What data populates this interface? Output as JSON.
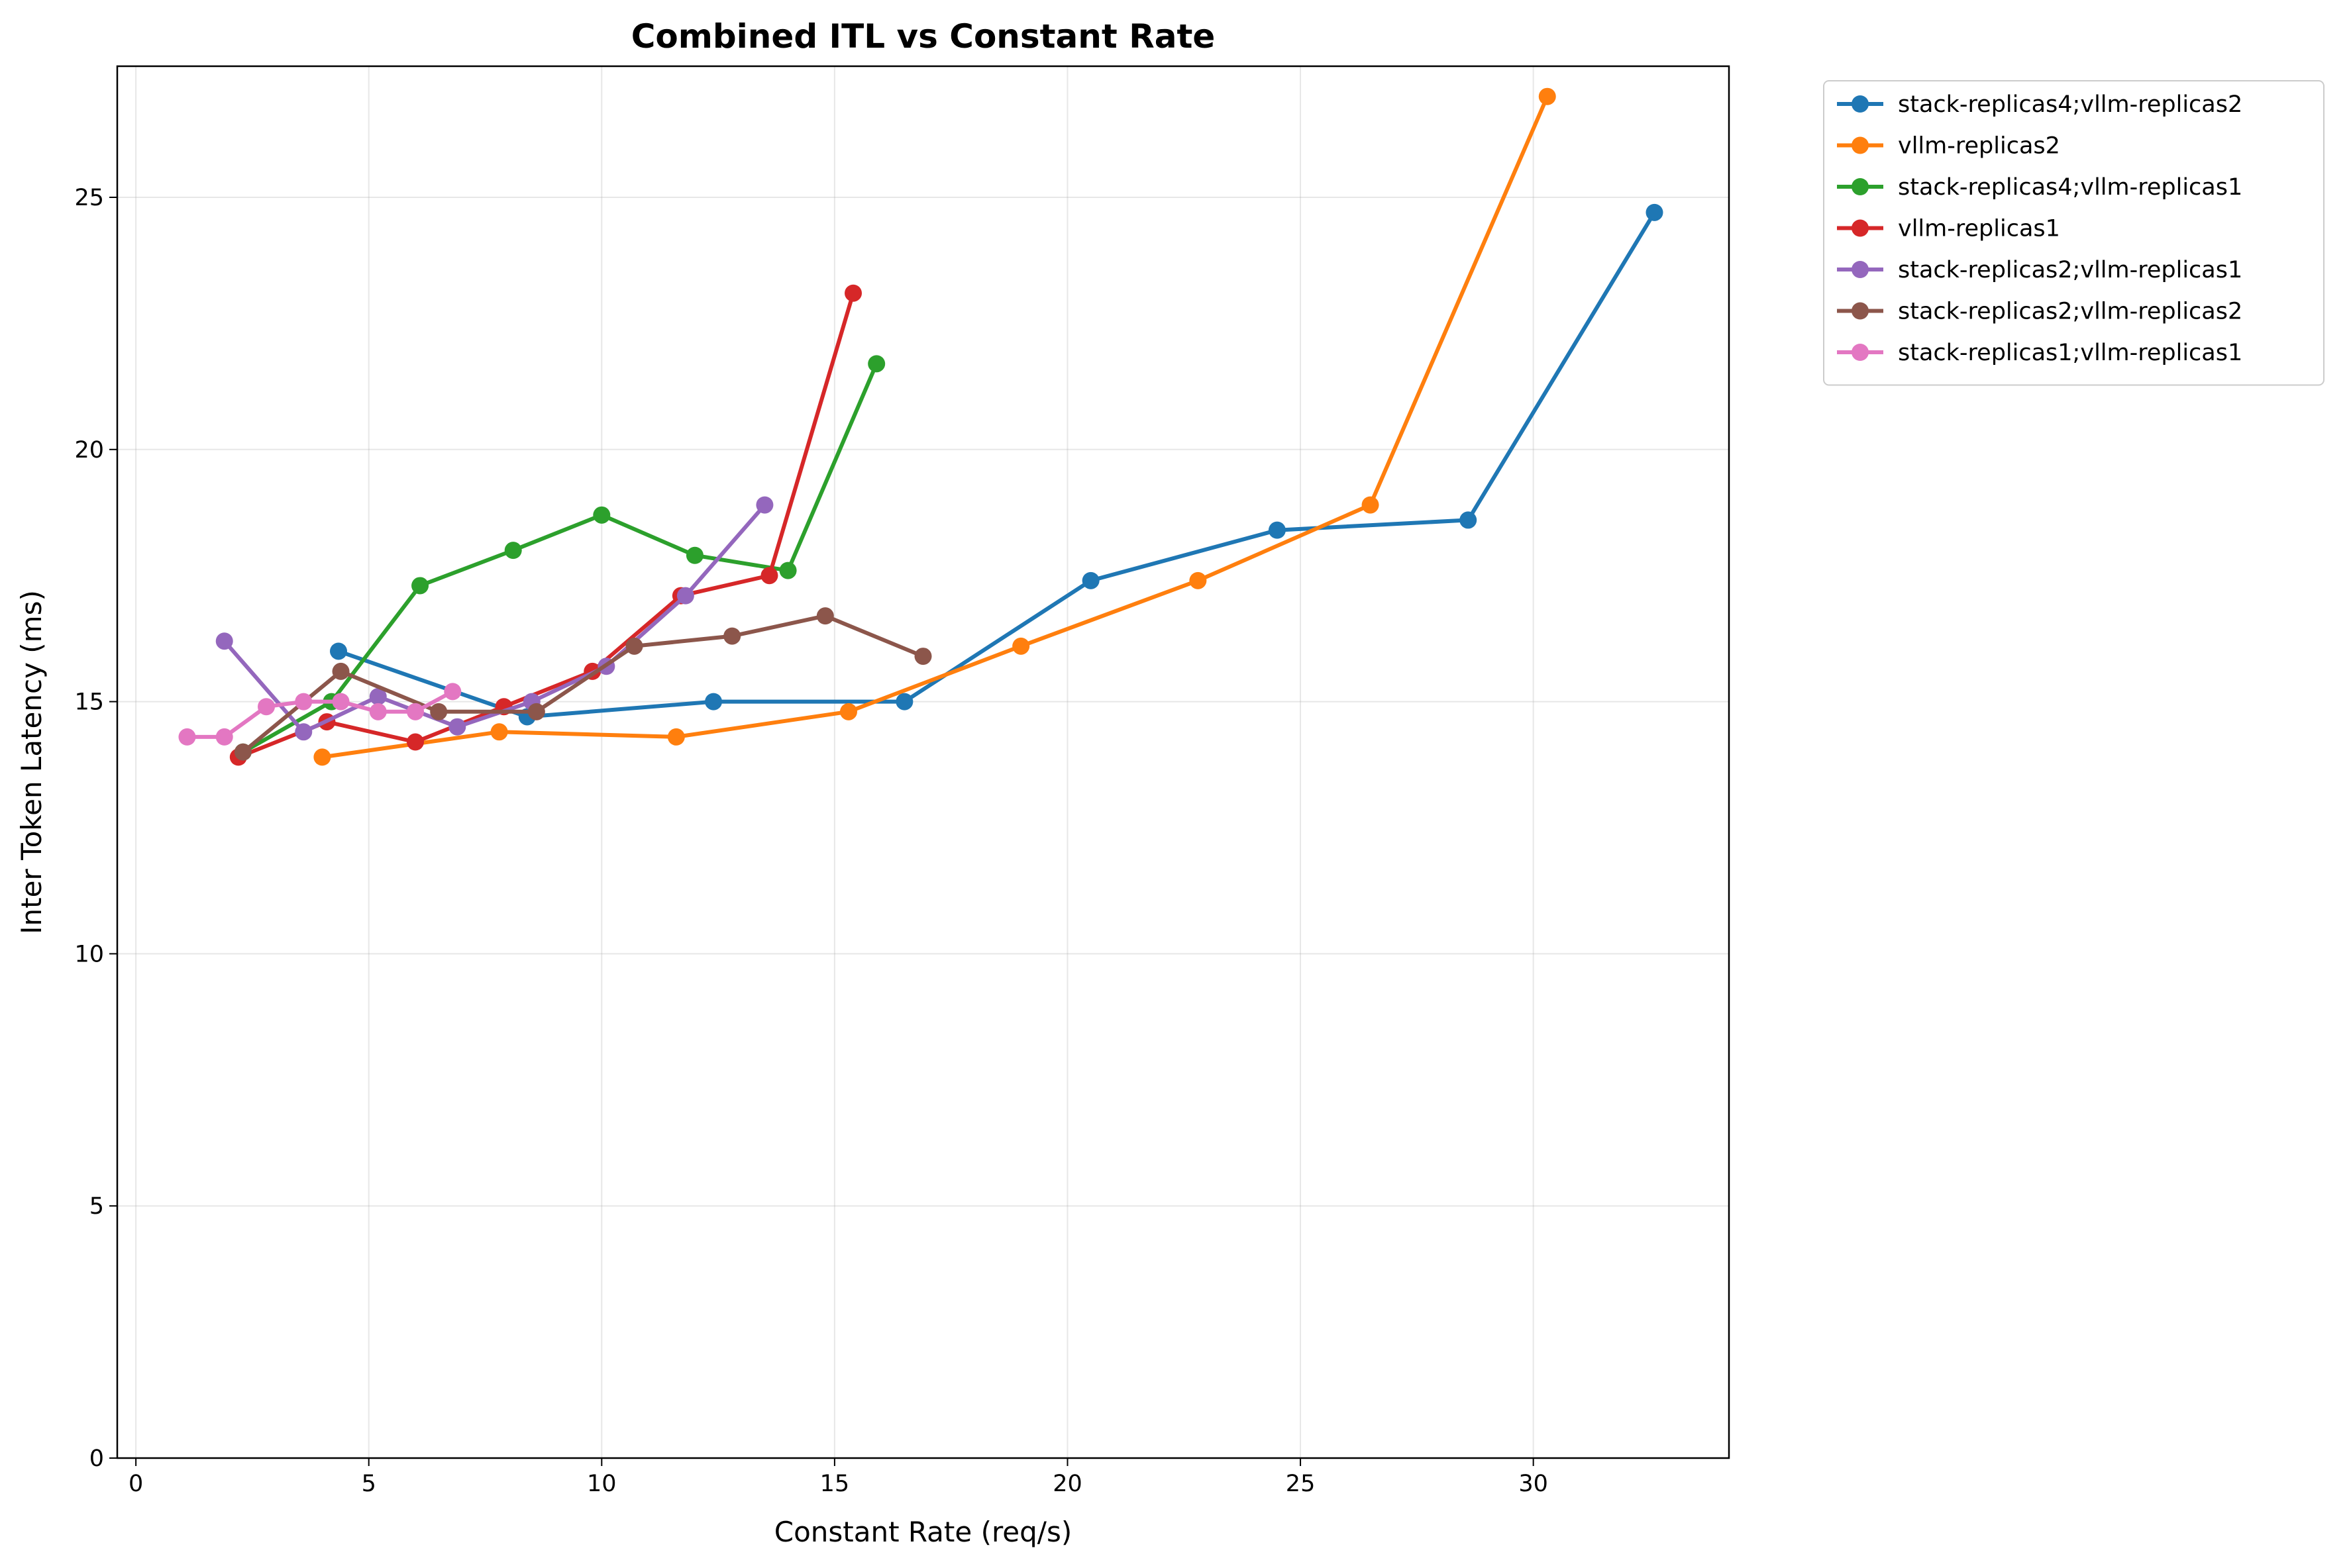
{
  "chart_data": {
    "type": "line",
    "title": "Combined ITL vs Constant Rate",
    "xlabel": "Constant Rate (req/s)",
    "ylabel": "Inter Token Latency (ms)",
    "xlim": [
      -0.4,
      34.2
    ],
    "ylim": [
      0,
      27.6
    ],
    "xticks": [
      0,
      5,
      10,
      15,
      20,
      25,
      30
    ],
    "yticks": [
      0,
      5,
      10,
      15,
      20,
      25
    ],
    "grid": true,
    "legend_placement": "outside-top-right",
    "series": [
      {
        "name": "stack-replicas4;vllm-replicas2",
        "color": "#1f77b4",
        "x": [
          4.35,
          8.4,
          12.4,
          16.5,
          20.5,
          24.5,
          28.6,
          32.6
        ],
        "y": [
          16.0,
          14.7,
          15.0,
          15.0,
          17.4,
          18.4,
          18.6,
          24.7
        ]
      },
      {
        "name": "vllm-replicas2",
        "color": "#ff7f0e",
        "x": [
          4.0,
          7.8,
          11.6,
          15.3,
          19.0,
          22.8,
          26.5,
          30.3
        ],
        "y": [
          13.9,
          14.4,
          14.3,
          14.8,
          16.1,
          17.4,
          18.9,
          27.0
        ]
      },
      {
        "name": "stack-replicas4;vllm-replicas1",
        "color": "#2ca02c",
        "x": [
          2.3,
          4.2,
          6.1,
          8.1,
          10.0,
          12.0,
          14.0,
          15.9
        ],
        "y": [
          14.0,
          15.0,
          17.3,
          18.0,
          18.7,
          17.9,
          17.6,
          21.7
        ]
      },
      {
        "name": "vllm-replicas1",
        "color": "#d62728",
        "x": [
          2.2,
          4.1,
          6.0,
          7.9,
          9.8,
          11.7,
          13.6,
          15.4
        ],
        "y": [
          13.9,
          14.6,
          14.2,
          14.9,
          15.6,
          17.1,
          17.5,
          23.1
        ]
      },
      {
        "name": "stack-replicas2;vllm-replicas1",
        "color": "#9467bd",
        "x": [
          1.9,
          3.6,
          5.2,
          6.9,
          8.5,
          10.1,
          11.8,
          13.5
        ],
        "y": [
          16.2,
          14.4,
          15.1,
          14.5,
          15.0,
          15.7,
          17.1,
          18.9
        ]
      },
      {
        "name": "stack-replicas2;vllm-replicas2",
        "color": "#8c564b",
        "x": [
          2.3,
          4.4,
          6.5,
          8.6,
          10.7,
          12.8,
          14.8,
          16.9
        ],
        "y": [
          14.0,
          15.6,
          14.8,
          14.8,
          16.1,
          16.3,
          16.7,
          15.9
        ]
      },
      {
        "name": "stack-replicas1;vllm-replicas1",
        "color": "#e377c2",
        "x": [
          1.1,
          1.9,
          2.8,
          3.6,
          4.4,
          5.2,
          6.0,
          6.8
        ],
        "y": [
          14.3,
          14.3,
          14.9,
          15.0,
          15.0,
          14.8,
          14.8,
          15.2
        ]
      }
    ]
  }
}
